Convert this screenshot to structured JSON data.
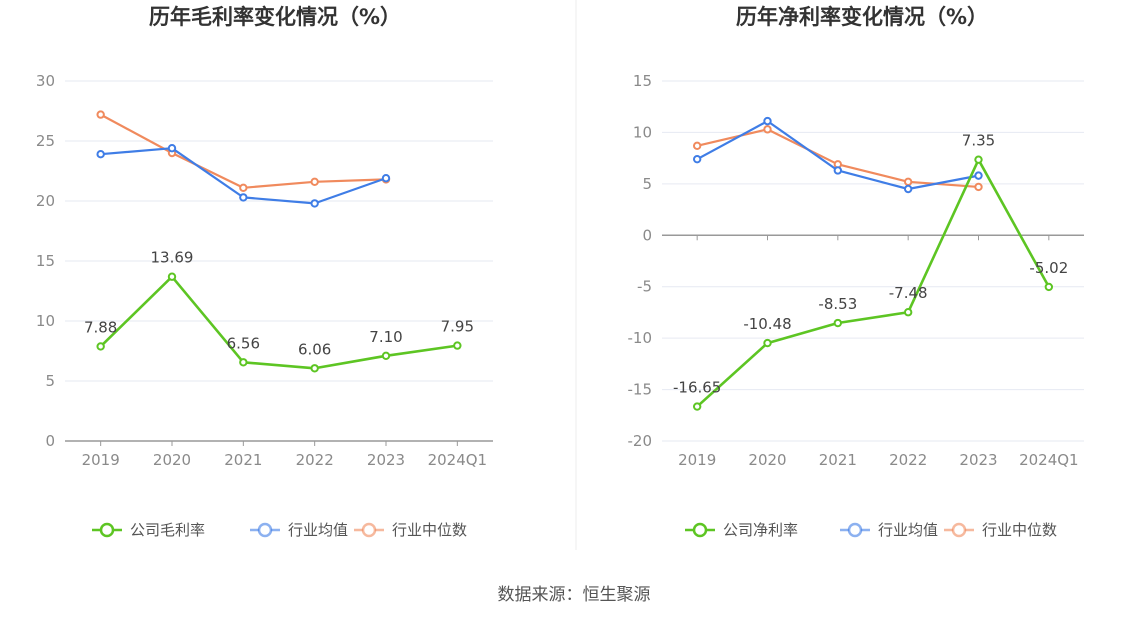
{
  "colors": {
    "company": "#5dc523",
    "avg": "#3f7de6",
    "median": "#f08a5d",
    "grid": "#e6e9f2",
    "axis": "#999999"
  },
  "source": "数据来源：恒生聚源",
  "chart_data": [
    {
      "type": "line",
      "title": "历年毛利率变化情况（%）",
      "categories": [
        "2019",
        "2020",
        "2021",
        "2022",
        "2023",
        "2024Q1"
      ],
      "ylim": [
        0,
        30
      ],
      "yticks": [
        "0",
        "5",
        "10",
        "15",
        "20",
        "25",
        "30"
      ],
      "grid": true,
      "legend_position": "bottom",
      "series": [
        {
          "key": "company",
          "name": "公司毛利率",
          "values": [
            7.88,
            13.69,
            6.56,
            6.06,
            7.1,
            7.95
          ],
          "labels": [
            "7.88",
            "13.69",
            "6.56",
            "6.06",
            "7.10",
            "7.95"
          ]
        },
        {
          "key": "avg",
          "name": "行业均值",
          "values": [
            23.9,
            24.4,
            20.3,
            19.8,
            21.9,
            null
          ]
        },
        {
          "key": "median",
          "name": "行业中位数",
          "values": [
            27.2,
            24.0,
            21.1,
            21.6,
            21.8,
            null
          ]
        }
      ]
    },
    {
      "type": "line",
      "title": "历年净利率变化情况（%）",
      "categories": [
        "2019",
        "2020",
        "2021",
        "2022",
        "2023",
        "2024Q1"
      ],
      "ylim": [
        -20,
        15
      ],
      "yticks": [
        "-20",
        "-15",
        "-10",
        "-5",
        "0",
        "5",
        "10",
        "15"
      ],
      "grid": true,
      "legend_position": "bottom",
      "series": [
        {
          "key": "company",
          "name": "公司净利率",
          "values": [
            -16.65,
            -10.48,
            -8.53,
            -7.48,
            7.35,
            -5.02
          ],
          "labels": [
            "-16.65",
            "-10.48",
            "-8.53",
            "-7.48",
            "7.35",
            "-5.02"
          ]
        },
        {
          "key": "avg",
          "name": "行业均值",
          "values": [
            7.4,
            11.1,
            6.3,
            4.5,
            5.8,
            null
          ]
        },
        {
          "key": "median",
          "name": "行业中位数",
          "values": [
            8.7,
            10.3,
            6.9,
            5.2,
            4.7,
            null
          ]
        }
      ]
    }
  ]
}
